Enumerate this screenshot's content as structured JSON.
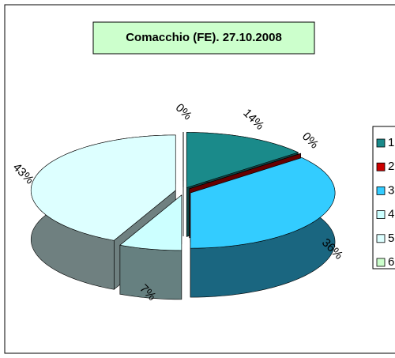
{
  "chart_data": {
    "type": "pie3d",
    "title": "Comacchio (FE). 27.10.2008",
    "categories": [
      "1",
      "2",
      "3",
      "4",
      "5",
      "6"
    ],
    "values": [
      14,
      0,
      36,
      7,
      43,
      0
    ],
    "value_labels": [
      "14%",
      "0%",
      "36%",
      "7%",
      "43%",
      "0%"
    ],
    "colors": [
      "#1a8a8a",
      "#cc0000",
      "#33ccff",
      "#ccffff",
      "#ddffff",
      "#ccffcc"
    ],
    "legend": "right"
  }
}
